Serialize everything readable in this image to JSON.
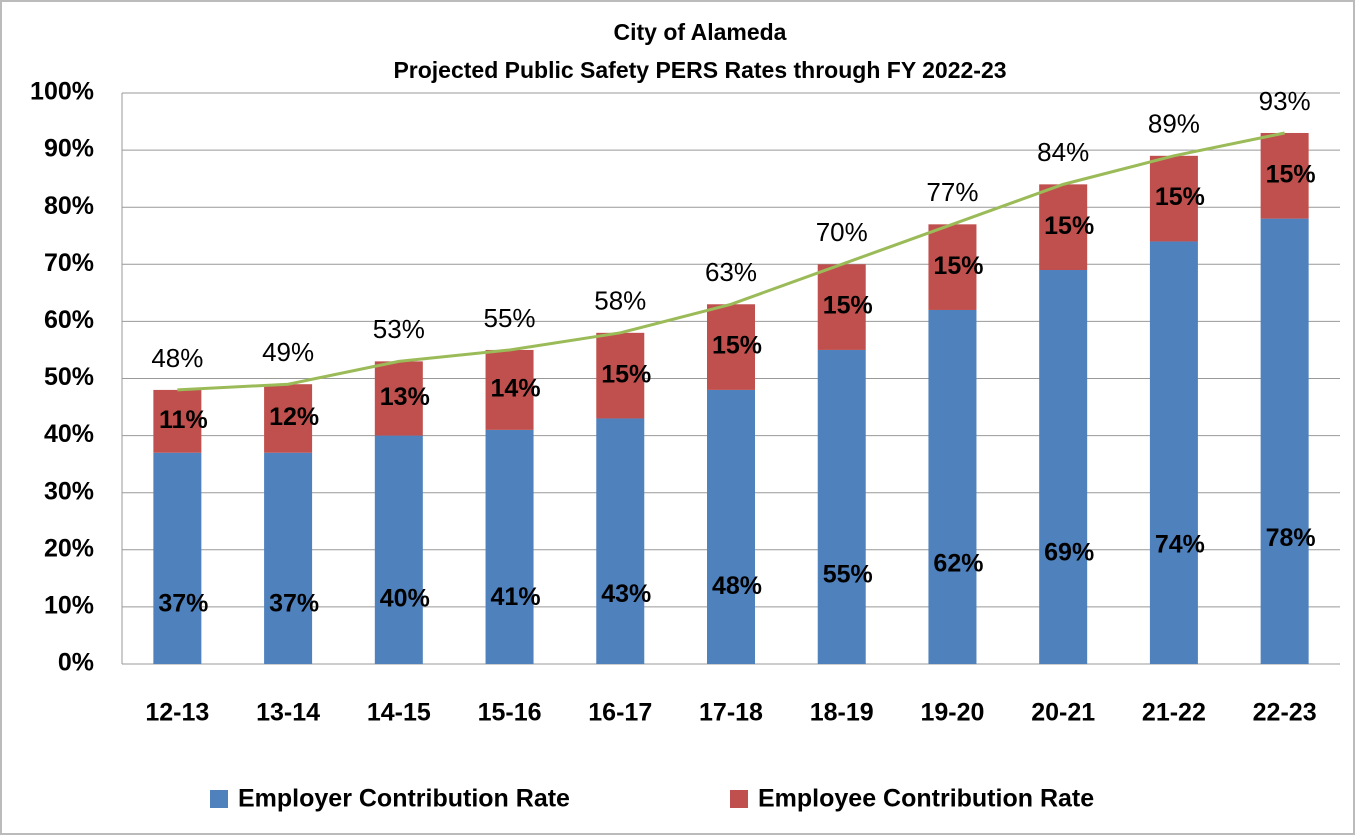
{
  "chart_data": {
    "type": "bar",
    "stacked": true,
    "title": "City of Alameda",
    "subtitle": "Projected Public Safety PERS Rates through FY 2022-23",
    "categories": [
      "12-13",
      "13-14",
      "14-15",
      "15-16",
      "16-17",
      "17-18",
      "18-19",
      "19-20",
      "20-21",
      "21-22",
      "22-23"
    ],
    "series": [
      {
        "name": "Employer Contribution Rate",
        "color": "#4f81bd",
        "values": [
          37,
          37,
          40,
          41,
          43,
          48,
          55,
          62,
          69,
          74,
          78
        ],
        "value_labels": [
          "37%",
          "37%",
          "40%",
          "41%",
          "43%",
          "48%",
          "55%",
          "62%",
          "69%",
          "74%",
          "78%"
        ]
      },
      {
        "name": "Employee Contribution Rate",
        "color": "#c0504d",
        "values": [
          11,
          12,
          13,
          14,
          15,
          15,
          15,
          15,
          15,
          15,
          15
        ],
        "value_labels": [
          "11%",
          "12%",
          "13%",
          "14%",
          "15%",
          "15%",
          "15%",
          "15%",
          "15%",
          "15%",
          "15%"
        ]
      }
    ],
    "totals": {
      "color": "#9bbb59",
      "values": [
        48,
        49,
        53,
        55,
        58,
        63,
        70,
        77,
        84,
        89,
        93
      ],
      "value_labels": [
        "48%",
        "49%",
        "53%",
        "55%",
        "58%",
        "63%",
        "70%",
        "77%",
        "84%",
        "89%",
        "93%"
      ]
    },
    "ylim": [
      0,
      100
    ],
    "yticks": [
      {
        "value": 0,
        "label": "0%"
      },
      {
        "value": 10,
        "label": "10%"
      },
      {
        "value": 20,
        "label": "20%"
      },
      {
        "value": 30,
        "label": "30%"
      },
      {
        "value": 40,
        "label": "40%"
      },
      {
        "value": 50,
        "label": "50%"
      },
      {
        "value": 60,
        "label": "60%"
      },
      {
        "value": 70,
        "label": "70%"
      },
      {
        "value": 80,
        "label": "80%"
      },
      {
        "value": 90,
        "label": "90%"
      },
      {
        "value": 100,
        "label": "100%"
      }
    ],
    "grid": true,
    "legend": "bottom"
  }
}
